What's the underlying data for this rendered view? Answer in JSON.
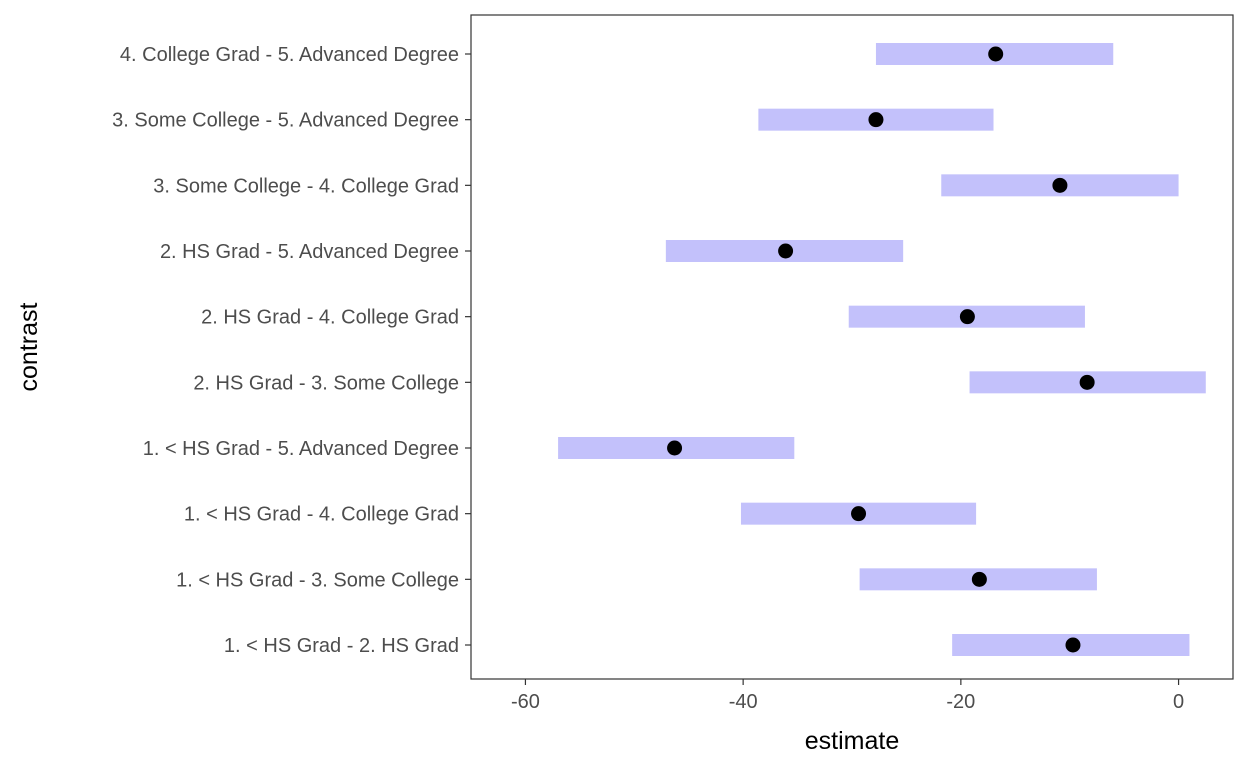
{
  "chart_data": {
    "type": "interval",
    "xlabel": "estimate",
    "ylabel": "contrast",
    "xlim": [
      -65,
      5
    ],
    "x_ticks": [
      "-60",
      "-40",
      "-20",
      "0"
    ],
    "x_tick_values": [
      -60,
      -40,
      -20,
      0
    ],
    "grid": false,
    "interval_color": "#c3c1fb",
    "point_color": "#000000",
    "categories": [
      "1. < HS Grad - 2. HS Grad",
      "1. < HS Grad - 3. Some College",
      "1. < HS Grad - 4. College Grad",
      "1. < HS Grad - 5. Advanced Degree",
      "2. HS Grad - 3. Some College",
      "2. HS Grad - 4. College Grad",
      "2. HS Grad - 5. Advanced Degree",
      "3. Some College - 4. College Grad",
      "3. Some College - 5. Advanced Degree",
      "4. College Grad - 5. Advanced Degree"
    ],
    "estimates": [
      -9.7,
      -18.3,
      -29.4,
      -46.3,
      -8.4,
      -19.4,
      -36.1,
      -10.9,
      -27.8,
      -16.8
    ],
    "lower": [
      -20.8,
      -29.3,
      -40.2,
      -57.0,
      -19.2,
      -30.3,
      -47.1,
      -21.8,
      -38.6,
      -27.8
    ],
    "upper": [
      1.0,
      -7.5,
      -18.6,
      -35.3,
      2.5,
      -8.6,
      -25.3,
      0.0,
      -17.0,
      -6.0
    ]
  }
}
